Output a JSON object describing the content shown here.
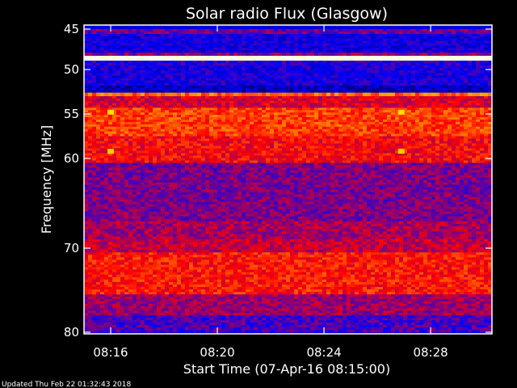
{
  "chart_data": {
    "type": "heatmap",
    "title": "Solar radio Flux (Glasgow)",
    "xlabel": "Start Time (07-Apr-16 08:15:00)",
    "ylabel": "Frequency [MHz]",
    "x_range_minutes": [
      0,
      15.3
    ],
    "ylim": [
      45,
      80
    ],
    "y_inverted": true,
    "x_ticks": [
      {
        "minute": 1,
        "label": "08:16"
      },
      {
        "minute": 5,
        "label": "08:20"
      },
      {
        "minute": 9,
        "label": "08:24"
      },
      {
        "minute": 13,
        "label": "08:28"
      }
    ],
    "y_ticks": [
      {
        "value": 45,
        "label": "45"
      },
      {
        "value": 50,
        "label": "50"
      },
      {
        "value": 55,
        "label": "55"
      },
      {
        "value": 60,
        "label": "60"
      },
      {
        "value": 70,
        "label": "70"
      },
      {
        "value": 80,
        "label": "80"
      }
    ],
    "colormap": [
      "#000000",
      "#0000ff",
      "#ff0000",
      "#ffff00",
      "#ffffff"
    ],
    "intensity_bands": [
      {
        "f0": 45.0,
        "f1": 45.6,
        "level": 0.36
      },
      {
        "f0": 45.6,
        "f1": 47.9,
        "level": 0.25
      },
      {
        "f0": 47.9,
        "f1": 48.3,
        "level": 0.38
      },
      {
        "f0": 48.3,
        "f1": 48.9,
        "level": 0.97
      },
      {
        "f0": 48.9,
        "f1": 49.5,
        "level": 0.28
      },
      {
        "f0": 49.5,
        "f1": 51.8,
        "level": 0.26
      },
      {
        "f0": 51.8,
        "f1": 52.6,
        "level": 0.18
      },
      {
        "f0": 52.6,
        "f1": 53.0,
        "level": 0.6
      },
      {
        "f0": 53.0,
        "f1": 54.3,
        "level": 0.46
      },
      {
        "f0": 54.3,
        "f1": 57.5,
        "level": 0.56
      },
      {
        "f0": 57.5,
        "f1": 60.5,
        "level": 0.5
      },
      {
        "f0": 60.5,
        "f1": 67.0,
        "level": 0.37
      },
      {
        "f0": 67.0,
        "f1": 69.0,
        "level": 0.41
      },
      {
        "f0": 69.0,
        "f1": 70.5,
        "level": 0.44
      },
      {
        "f0": 70.5,
        "f1": 75.5,
        "level": 0.52
      },
      {
        "f0": 75.5,
        "f1": 78.0,
        "level": 0.4
      },
      {
        "f0": 78.0,
        "f1": 80.0,
        "level": 0.32
      }
    ],
    "hot_spots": [
      {
        "minute": 1.0,
        "mhz": 54.8,
        "level": 0.72
      },
      {
        "minute": 11.9,
        "mhz": 54.8,
        "level": 0.72
      },
      {
        "minute": 1.0,
        "mhz": 59.2,
        "level": 0.7
      },
      {
        "minute": 11.9,
        "mhz": 59.2,
        "level": 0.7
      }
    ]
  },
  "footer_text": "Updated Thu Feb 22 01:32:43 2018"
}
